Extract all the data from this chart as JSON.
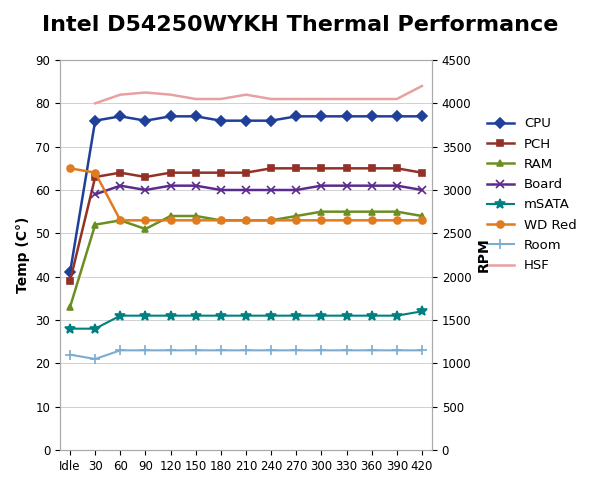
{
  "title": "Intel D54250WYKH Thermal Performance",
  "ylabel_left": "Temp (C°)",
  "ylabel_right": "RPM",
  "x_labels": [
    "Idle",
    "30",
    "60",
    "90",
    "120",
    "150",
    "180",
    "210",
    "240",
    "270",
    "300",
    "330",
    "360",
    "390",
    "420"
  ],
  "x_values": [
    0,
    1,
    2,
    3,
    4,
    5,
    6,
    7,
    8,
    9,
    10,
    11,
    12,
    13,
    14
  ],
  "ylim_left": [
    0,
    90
  ],
  "ylim_right": [
    0,
    4500
  ],
  "yticks_left": [
    0,
    10,
    20,
    30,
    40,
    50,
    60,
    70,
    80,
    90
  ],
  "yticks_right": [
    0,
    500,
    1000,
    1500,
    2000,
    2500,
    3000,
    3500,
    4000,
    4500
  ],
  "series": {
    "CPU": {
      "color": "#1F3F99",
      "marker": "D",
      "markersize": 5,
      "linewidth": 1.8,
      "values": [
        41,
        76,
        77,
        76,
        77,
        77,
        76,
        76,
        76,
        77,
        77,
        77,
        77,
        77,
        77
      ],
      "axis": "left"
    },
    "PCH": {
      "color": "#943126",
      "marker": "s",
      "markersize": 5,
      "linewidth": 1.8,
      "values": [
        39,
        63,
        64,
        63,
        64,
        64,
        64,
        64,
        65,
        65,
        65,
        65,
        65,
        65,
        64
      ],
      "axis": "left"
    },
    "RAM": {
      "color": "#6B8E23",
      "marker": "^",
      "markersize": 5,
      "linewidth": 1.8,
      "values": [
        33,
        52,
        53,
        51,
        54,
        54,
        53,
        53,
        53,
        54,
        55,
        55,
        55,
        55,
        54
      ],
      "axis": "left"
    },
    "Board": {
      "color": "#5B2C8D",
      "marker": "x",
      "markersize": 6,
      "linewidth": 1.8,
      "values": [
        null,
        59,
        61,
        60,
        61,
        61,
        60,
        60,
        60,
        60,
        61,
        61,
        61,
        61,
        60
      ],
      "axis": "left"
    },
    "mSATA": {
      "color": "#008080",
      "marker": "*",
      "markersize": 7,
      "linewidth": 1.5,
      "values": [
        28,
        28,
        31,
        31,
        31,
        31,
        31,
        31,
        31,
        31,
        31,
        31,
        31,
        31,
        32
      ],
      "axis": "left"
    },
    "WD Red": {
      "color": "#E07B20",
      "marker": "o",
      "markersize": 5,
      "linewidth": 1.8,
      "values": [
        65,
        64,
        53,
        53,
        53,
        53,
        53,
        53,
        53,
        53,
        53,
        53,
        53,
        53,
        53
      ],
      "axis": "left"
    },
    "Room": {
      "color": "#7AADD0",
      "marker": "+",
      "markersize": 7,
      "linewidth": 1.5,
      "values": [
        22,
        21,
        23,
        23,
        23,
        23,
        23,
        23,
        23,
        23,
        23,
        23,
        23,
        23,
        23
      ],
      "axis": "left"
    },
    "HSF": {
      "color": "#E8A0A0",
      "marker": null,
      "markersize": 0,
      "linewidth": 1.8,
      "values": [
        null,
        4000,
        4100,
        4125,
        4100,
        4050,
        4050,
        4100,
        4050,
        4050,
        4050,
        4050,
        4050,
        4050,
        4200
      ],
      "axis": "right"
    }
  },
  "background_color": "#FFFFFF",
  "grid_color": "#D0D0D0",
  "title_fontsize": 16,
  "axis_label_fontsize": 10,
  "tick_fontsize": 8.5,
  "legend_fontsize": 9.5
}
